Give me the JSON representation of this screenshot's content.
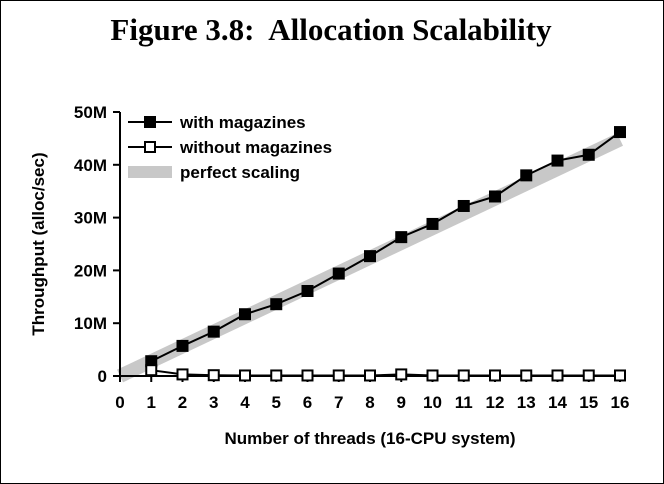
{
  "chart_data": {
    "type": "line",
    "title": "Figure 3.8:  Allocation Scalability",
    "xlabel": "Number of threads (16-CPU system)",
    "ylabel": "Throughput (alloc/sec)",
    "xlim": [
      0,
      16
    ],
    "ylim": [
      0,
      50000000
    ],
    "x_ticks": [
      "0",
      "1",
      "2",
      "3",
      "4",
      "5",
      "6",
      "7",
      "8",
      "9",
      "10",
      "11",
      "12",
      "13",
      "14",
      "15",
      "16"
    ],
    "y_ticks": [
      {
        "value": 0,
        "label": "0"
      },
      {
        "value": 10000000,
        "label": "10M"
      },
      {
        "value": 20000000,
        "label": "20M"
      },
      {
        "value": 30000000,
        "label": "30M"
      },
      {
        "value": 40000000,
        "label": "40M"
      },
      {
        "value": 50000000,
        "label": "50M"
      }
    ],
    "grid": false,
    "legend_position": "top-left",
    "series": [
      {
        "name": "with magazines",
        "marker": "filled-square",
        "color": "#000000",
        "x": [
          1,
          2,
          3,
          4,
          5,
          6,
          7,
          8,
          9,
          10,
          11,
          12,
          13,
          14,
          15,
          16
        ],
        "values": [
          2800000,
          5700000,
          8400000,
          11700000,
          13600000,
          16100000,
          19400000,
          22700000,
          26300000,
          28800000,
          32200000,
          34000000,
          38000000,
          40800000,
          41900000,
          46200000
        ]
      },
      {
        "name": "without magazines",
        "marker": "open-square",
        "color": "#000000",
        "x": [
          1,
          2,
          3,
          4,
          5,
          6,
          7,
          8,
          9,
          10,
          11,
          12,
          13,
          14,
          15,
          16
        ],
        "values": [
          1100000,
          300000,
          150000,
          100000,
          100000,
          100000,
          100000,
          100000,
          300000,
          100000,
          100000,
          100000,
          100000,
          100000,
          100000,
          100000
        ]
      },
      {
        "name": "perfect scaling",
        "style": "band",
        "color": "#c8c8c8",
        "x": [
          0,
          16
        ],
        "values": [
          0,
          44800000
        ]
      }
    ]
  }
}
